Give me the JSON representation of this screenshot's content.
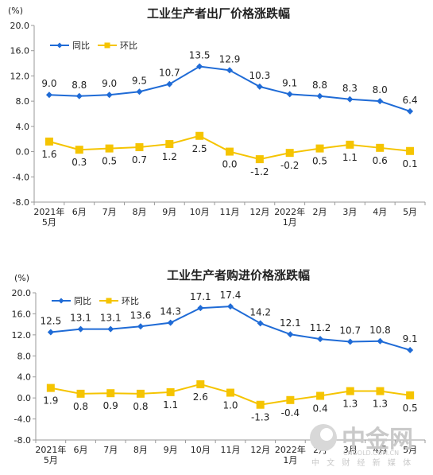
{
  "colors": {
    "yoy": "#1f6bd6",
    "mom": "#f5c400",
    "axis": "#999999",
    "grid": "#dddddd"
  },
  "watermark": {
    "main": "中金网",
    "sub": "中 文 财 经 新 媒 体",
    "overlay": "CNGOLD.COM.CN"
  },
  "chart_data": [
    {
      "type": "line",
      "title": "工业生产者出厂价格涨跌幅",
      "unit": "(%)",
      "ylim": [
        -8.0,
        20.0
      ],
      "yticks": [
        "20.0",
        "16.0",
        "12.0",
        "8.0",
        "4.0",
        "0.0",
        "-4.0",
        "-8.0"
      ],
      "categories": [
        "2021年5月",
        "6月",
        "7月",
        "8月",
        "9月",
        "10月",
        "11月",
        "12月",
        "2022年1月",
        "2月",
        "3月",
        "4月",
        "5月"
      ],
      "xlabels": [
        [
          "2021年",
          "5月"
        ],
        [
          "6月"
        ],
        [
          "7月"
        ],
        [
          "8月"
        ],
        [
          "9月"
        ],
        [
          "10月"
        ],
        [
          "11月"
        ],
        [
          "12月"
        ],
        [
          "2022年",
          "1月"
        ],
        [
          "2月"
        ],
        [
          "3月"
        ],
        [
          "4月"
        ],
        [
          "5月"
        ]
      ],
      "legend_position": "top-left",
      "series": [
        {
          "name": "同比",
          "values": [
            9.0,
            8.8,
            9.0,
            9.5,
            10.7,
            13.5,
            12.9,
            10.3,
            9.1,
            8.8,
            8.3,
            8.0,
            6.4
          ],
          "labels": [
            "9.0",
            "8.8",
            "9.0",
            "9.5",
            "10.7",
            "13.5",
            "12.9",
            "10.3",
            "9.1",
            "8.8",
            "8.3",
            "8.0",
            "6.4"
          ]
        },
        {
          "name": "环比",
          "values": [
            1.6,
            0.3,
            0.5,
            0.7,
            1.2,
            2.5,
            0.0,
            -1.2,
            -0.2,
            0.5,
            1.1,
            0.6,
            0.1
          ],
          "labels": [
            "1.6",
            "0.3",
            "0.5",
            "0.7",
            "1.2",
            "2.5",
            "0.0",
            "-1.2",
            "-0.2",
            "0.5",
            "1.1",
            "0.6",
            "0.1"
          ]
        }
      ]
    },
    {
      "type": "line",
      "title": "工业生产者购进价格涨跌幅",
      "unit": "(%)",
      "ylim": [
        -8.0,
        20.0
      ],
      "yticks": [
        "20.0",
        "16.0",
        "12.0",
        "8.0",
        "4.0",
        "0.0",
        "-4.0",
        "-8.0"
      ],
      "categories": [
        "2021年5月",
        "6月",
        "7月",
        "8月",
        "9月",
        "10月",
        "11月",
        "12月",
        "2022年1月",
        "2月",
        "3月",
        "4月",
        "5月"
      ],
      "xlabels": [
        [
          "2021年",
          "5月"
        ],
        [
          "6月"
        ],
        [
          "7月"
        ],
        [
          "8月"
        ],
        [
          "9月"
        ],
        [
          "10月"
        ],
        [
          "11月"
        ],
        [
          "12月"
        ],
        [
          "2022年",
          "1月"
        ],
        [
          "2月"
        ],
        [
          "3月"
        ],
        [
          "4月"
        ],
        [
          "5月"
        ]
      ],
      "legend_position": "top-left",
      "series": [
        {
          "name": "同比",
          "values": [
            12.5,
            13.1,
            13.1,
            13.6,
            14.3,
            17.1,
            17.4,
            14.2,
            12.1,
            11.2,
            10.7,
            10.8,
            9.1
          ],
          "labels": [
            "12.5",
            "13.1",
            "13.1",
            "13.6",
            "14.3",
            "17.1",
            "17.4",
            "14.2",
            "12.1",
            "11.2",
            "10.7",
            "10.8",
            "9.1"
          ]
        },
        {
          "name": "环比",
          "values": [
            1.9,
            0.8,
            0.9,
            0.8,
            1.1,
            2.6,
            1.0,
            -1.3,
            -0.4,
            0.4,
            1.3,
            1.3,
            0.5
          ],
          "labels": [
            "1.9",
            "0.8",
            "0.9",
            "0.8",
            "1.1",
            "2.6",
            "1.0",
            "-1.3",
            "-0.4",
            "0.4",
            "1.3",
            "1.3",
            "0.5"
          ]
        }
      ]
    }
  ]
}
